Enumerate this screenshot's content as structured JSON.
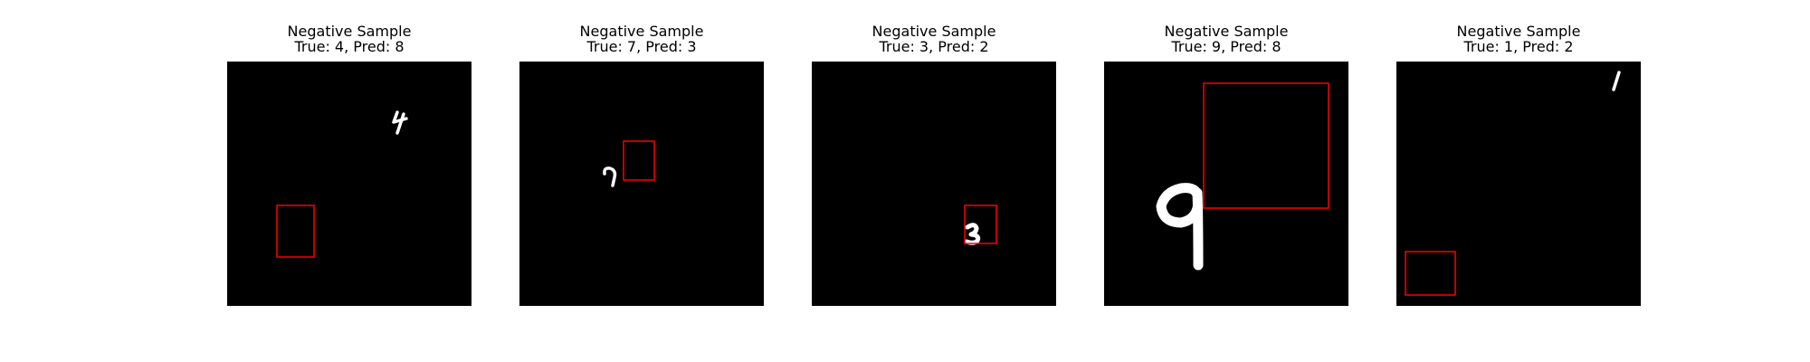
{
  "panels": [
    {
      "title": "Negative Sample",
      "subtitle": "True: 4, Pred: 8",
      "digit_icon": "handwritten-4-icon",
      "box_color": "#ff0000"
    },
    {
      "title": "Negative Sample",
      "subtitle": "True: 7, Pred: 3",
      "digit_icon": "handwritten-7-icon",
      "box_color": "#ff0000"
    },
    {
      "title": "Negative Sample",
      "subtitle": "True: 3, Pred: 2",
      "digit_icon": "handwritten-3-icon",
      "box_color": "#ff0000"
    },
    {
      "title": "Negative Sample",
      "subtitle": "True: 9, Pred: 8",
      "digit_icon": "handwritten-9-icon",
      "box_color": "#ff0000"
    },
    {
      "title": "Negative Sample",
      "subtitle": "True: 1, Pred: 2",
      "digit_icon": "handwritten-1-icon",
      "box_color": "#ff0000"
    }
  ]
}
